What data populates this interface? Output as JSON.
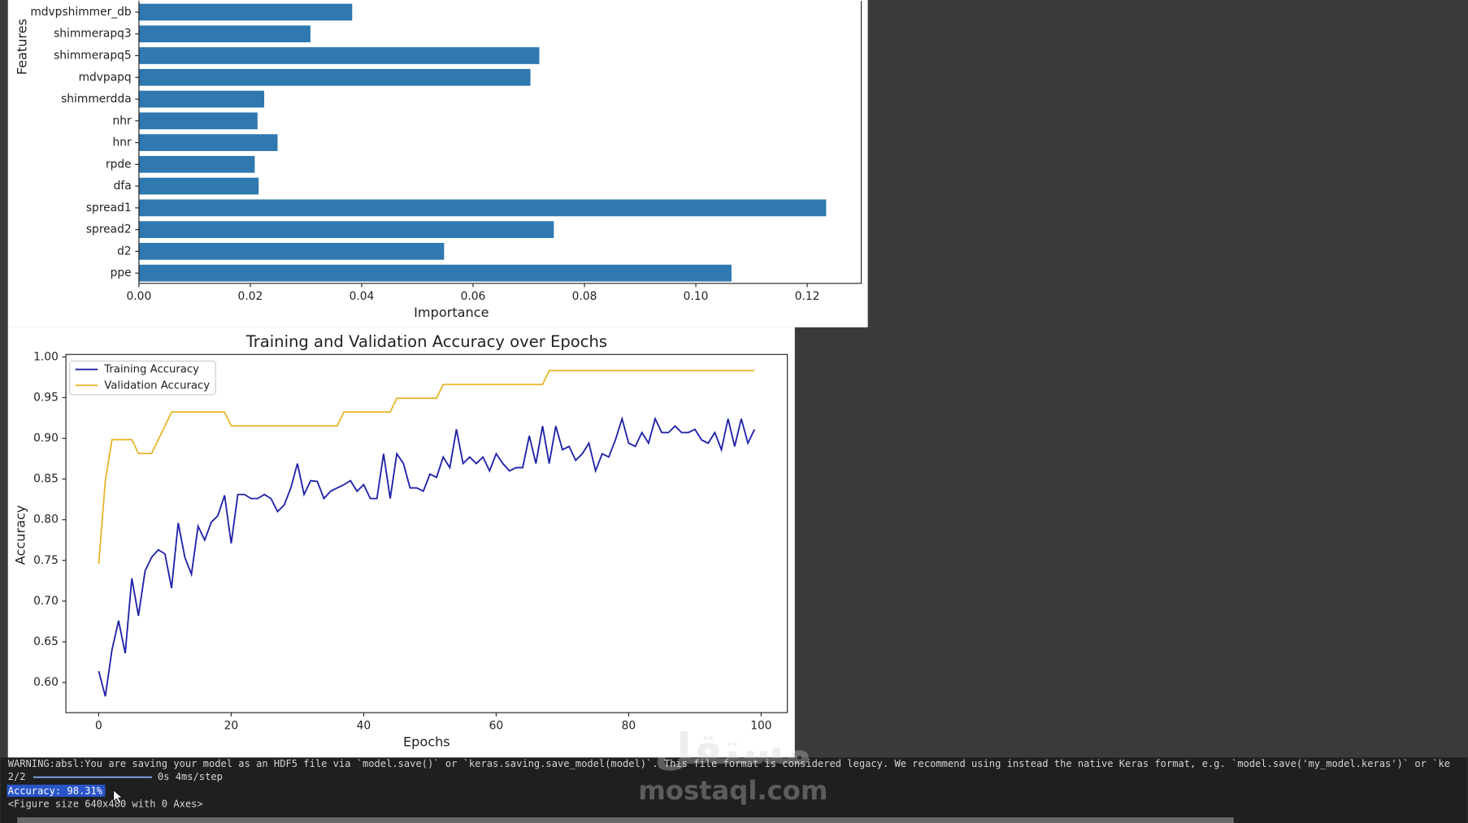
{
  "chart_data": [
    {
      "type": "barh",
      "xlabel": "Importance",
      "ylabel": "Features",
      "categories": [
        "mdvpshimmer_db",
        "shimmerapq3",
        "shimmerapq5",
        "mdvpapq",
        "shimmerdda",
        "nhr",
        "hnr",
        "rpde",
        "dfa",
        "spread1",
        "spread2",
        "d2",
        "ppe"
      ],
      "values": [
        0.0383,
        0.0308,
        0.0719,
        0.0703,
        0.0225,
        0.0213,
        0.0249,
        0.0208,
        0.0215,
        0.1234,
        0.0745,
        0.0548,
        0.1064
      ],
      "color": "#2f78b0",
      "xlim": [
        0,
        0.1297
      ],
      "xticks": [
        {
          "value": 0,
          "label": "0.00"
        },
        0.02,
        0.04,
        0.06,
        0.08,
        {
          "value": 0.1,
          "label": "0.10"
        },
        0.12
      ]
    },
    {
      "type": "line",
      "title": "Training and Validation Accuracy over Epochs",
      "xlabel": "Epochs",
      "ylabel": "Accuracy",
      "x": [
        0,
        1,
        2,
        3,
        4,
        5,
        6,
        7,
        8,
        9,
        10,
        11,
        12,
        13,
        14,
        15,
        16,
        17,
        18,
        19,
        20,
        21,
        22,
        23,
        24,
        25,
        26,
        27,
        28,
        29,
        30,
        31,
        32,
        33,
        34,
        35,
        36,
        37,
        38,
        39,
        40,
        41,
        42,
        43,
        44,
        45,
        46,
        47,
        48,
        49,
        50,
        51,
        52,
        53,
        54,
        55,
        56,
        57,
        58,
        59,
        60,
        61,
        62,
        63,
        64,
        65,
        66,
        67,
        68,
        69,
        70,
        71,
        72,
        73,
        74,
        75,
        76,
        77,
        78,
        79,
        80,
        81,
        82,
        83,
        84,
        85,
        86,
        87,
        88,
        89,
        90,
        91,
        92,
        93,
        94,
        95,
        96,
        97,
        98,
        99
      ],
      "series": [
        {
          "name": "Training Accuracy",
          "color": "#1f22a8",
          "values": [
            0.614,
            0.583,
            0.64,
            0.676,
            0.636,
            0.728,
            0.682,
            0.737,
            0.754,
            0.763,
            0.758,
            0.716,
            0.796,
            0.754,
            0.733,
            0.792,
            0.775,
            0.797,
            0.805,
            0.83,
            0.771,
            0.831,
            0.831,
            0.826,
            0.826,
            0.831,
            0.826,
            0.81,
            0.818,
            0.839,
            0.869,
            0.831,
            0.848,
            0.847,
            0.826,
            0.835,
            0.839,
            0.843,
            0.848,
            0.835,
            0.843,
            0.826,
            0.826,
            0.881,
            0.826,
            0.881,
            0.869,
            0.839,
            0.839,
            0.835,
            0.856,
            0.852,
            0.877,
            0.864,
            0.911,
            0.869,
            0.877,
            0.869,
            0.877,
            0.86,
            0.881,
            0.869,
            0.86,
            0.864,
            0.864,
            0.903,
            0.869,
            0.915,
            0.869,
            0.915,
            0.886,
            0.89,
            0.873,
            0.881,
            0.894,
            0.86,
            0.881,
            0.877,
            0.898,
            0.924,
            0.894,
            0.89,
            0.907,
            0.894,
            0.924,
            0.907,
            0.907,
            0.915,
            0.907,
            0.907,
            0.911,
            0.898,
            0.894,
            0.907,
            0.886,
            0.924,
            0.89,
            0.924,
            0.894,
            0.911
          ]
        },
        {
          "name": "Validation Accuracy",
          "color": "#e8b62c",
          "values": [
            0.7458,
            0.8475,
            0.8983,
            0.8983,
            0.8983,
            0.8983,
            0.8814,
            0.8814,
            0.8814,
            0.8983,
            0.9153,
            0.9322,
            0.9322,
            0.9322,
            0.9322,
            0.9322,
            0.9322,
            0.9322,
            0.9322,
            0.9322,
            0.9153,
            0.9153,
            0.9153,
            0.9153,
            0.9153,
            0.9153,
            0.9153,
            0.9153,
            0.9153,
            0.9153,
            0.9153,
            0.9153,
            0.9153,
            0.9153,
            0.9153,
            0.9153,
            0.9153,
            0.9322,
            0.9322,
            0.9322,
            0.9322,
            0.9322,
            0.9322,
            0.9322,
            0.9322,
            0.9492,
            0.9492,
            0.9492,
            0.9492,
            0.9492,
            0.9492,
            0.9492,
            0.9661,
            0.9661,
            0.9661,
            0.9661,
            0.9661,
            0.9661,
            0.9661,
            0.9661,
            0.9661,
            0.9661,
            0.9661,
            0.9661,
            0.9661,
            0.9661,
            0.9661,
            0.9661,
            0.9831,
            0.9831,
            0.9831,
            0.9831,
            0.9831,
            0.9831,
            0.9831,
            0.9831,
            0.9831,
            0.9831,
            0.9831,
            0.9831,
            0.9831,
            0.9831,
            0.9831,
            0.9831,
            0.9831,
            0.9831,
            0.9831,
            0.9831,
            0.9831,
            0.9831,
            0.9831,
            0.9831,
            0.9831,
            0.9831,
            0.9831,
            0.9831,
            0.9831,
            0.9831,
            0.9831,
            0.9831
          ]
        }
      ],
      "xlim": [
        -4.95,
        103.95
      ],
      "xticks": [
        0,
        20,
        40,
        60,
        80,
        100
      ],
      "ylim": [
        0.563,
        1.003
      ],
      "yticks": [
        {
          "value": 0.6,
          "label": "0.60"
        },
        0.65,
        {
          "value": 0.7,
          "label": "0.70"
        },
        0.75,
        {
          "value": 0.8,
          "label": "0.80"
        },
        0.85,
        {
          "value": 0.9,
          "label": "0.90"
        },
        0.95,
        {
          "value": 1,
          "label": "1.00"
        }
      ],
      "legend": "upper left"
    }
  ],
  "console": {
    "warning": "WARNING:absl:You are saving your model as an HDF5 file via `model.save()` or `keras.saving.save_model(model)`. This file format is considered legacy. We recommend using instead the native Keras format, e.g. `model.save('my_model.keras')` or `ke",
    "progress_steps": "2/2",
    "progress_time": "0s 4ms/step",
    "accuracy": "Accuracy: 98.31%",
    "figure": "<Figure size 640x480 with 0 Axes>"
  },
  "watermark": {
    "arabic": "مستقل",
    "site": "mostaql.com"
  }
}
